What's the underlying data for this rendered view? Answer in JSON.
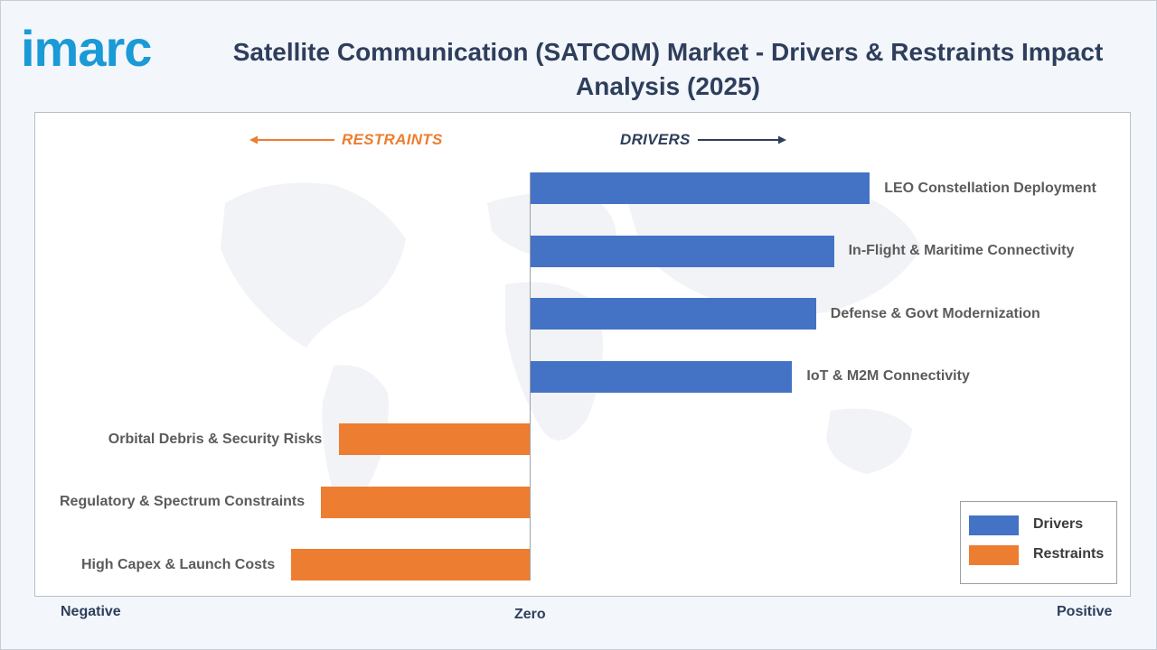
{
  "logo_text": "imarc",
  "title": "Satellite Communication (SATCOM) Market - Drivers & Restraints Impact Analysis (2025)",
  "restraints_header": "RESTRAINTS",
  "drivers_header": "DRIVERS",
  "axis": {
    "negative": "Negative",
    "zero": "Zero",
    "positive": "Positive"
  },
  "legend": [
    {
      "label": "Drivers",
      "color": "#4472c4"
    },
    {
      "label": "Restraints",
      "color": "#ed7d31"
    }
  ],
  "chart_data": {
    "type": "bar",
    "orientation": "horizontal",
    "title": "Satellite Communication (SATCOM) Market - Drivers & Restraints Impact Analysis (2025)",
    "xlim": [
      -1.0,
      1.0
    ],
    "categories": [
      "LEO Constellation Deployment",
      "In-Flight & Maritime Connectivity",
      "Defense & Govt Modernization",
      "IoT & M2M Connectivity",
      "Orbital Debris & Security Risks",
      "Regulatory & Spectrum Constraints",
      "High Capex & Launch Costs"
    ],
    "series": [
      {
        "name": "Drivers",
        "color": "#4472c4",
        "values": [
          0.57,
          0.51,
          0.48,
          0.44,
          null,
          null,
          null
        ]
      },
      {
        "name": "Restraints",
        "color": "#ed7d31",
        "values": [
          null,
          null,
          null,
          null,
          -0.32,
          -0.35,
          -0.4
        ]
      }
    ],
    "legend_position": "bottom-right",
    "grid": false
  }
}
